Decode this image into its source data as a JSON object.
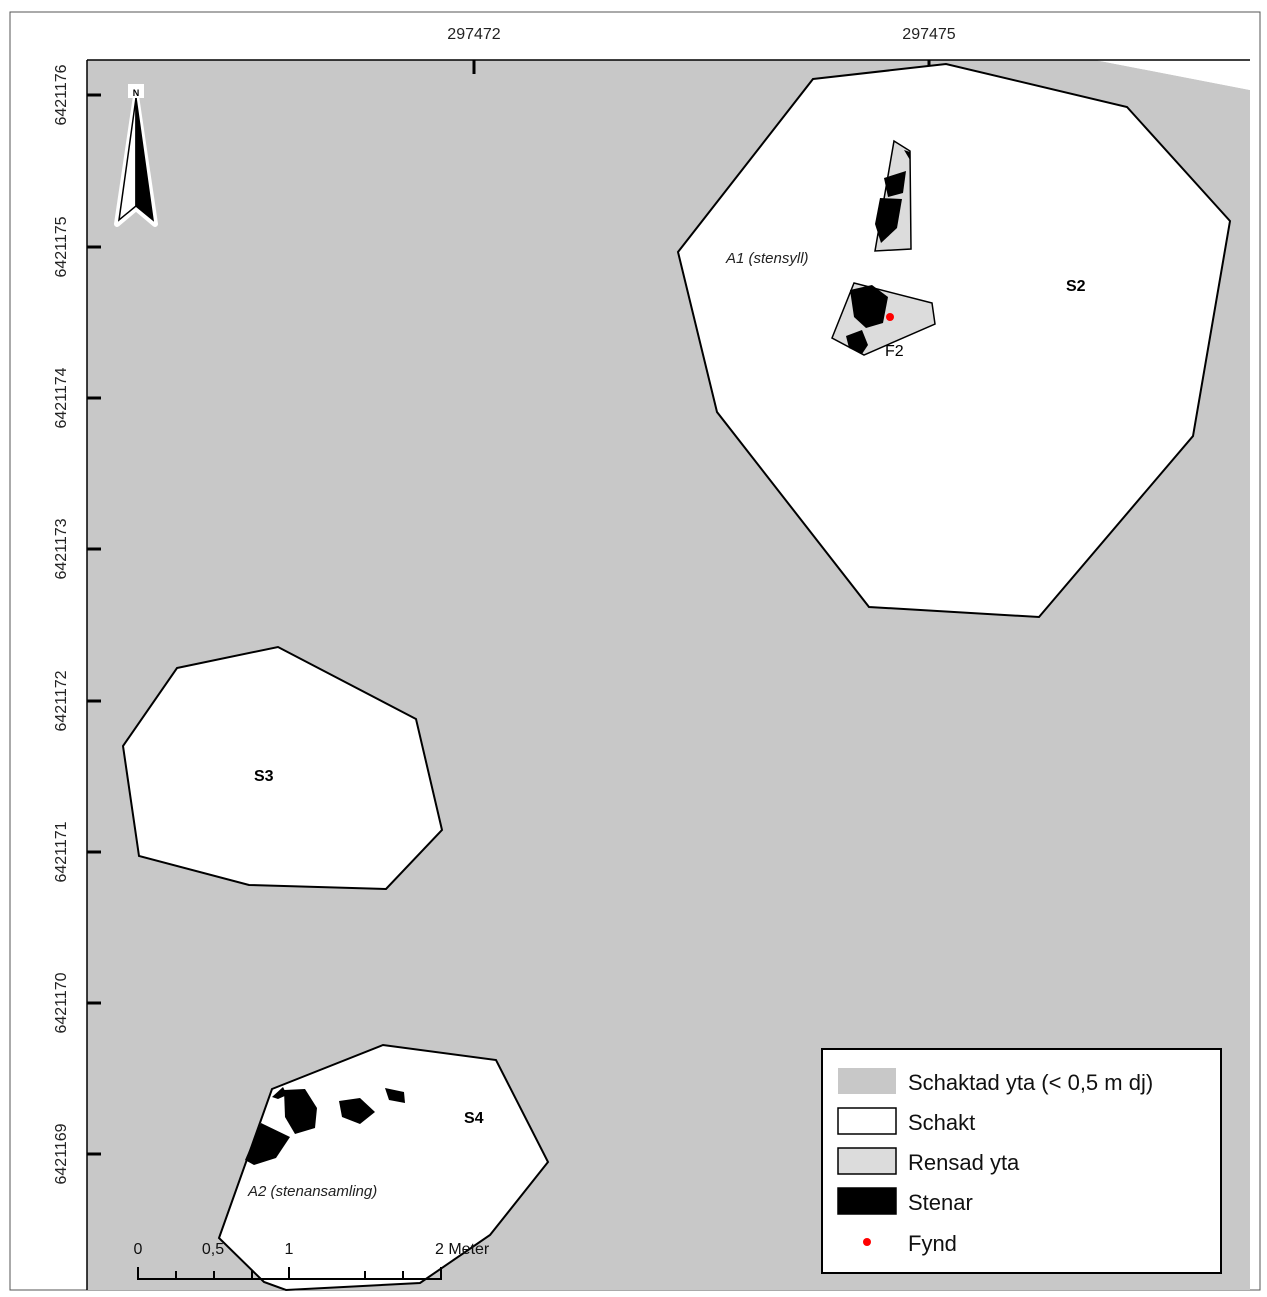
{
  "map": {
    "axis_top": {
      "labels": [
        "297472",
        "297475"
      ]
    },
    "axis_left": {
      "labels": [
        "6421176",
        "6421175",
        "6421174",
        "6421173",
        "6421172",
        "6421171",
        "6421170",
        "6421169"
      ]
    },
    "north_arrow": {
      "letter": "N"
    },
    "features": {
      "s2": "S2",
      "s3": "S3",
      "s4": "S4",
      "a1": "A1 (stensyll)",
      "a2": "A2 (stenansamling)",
      "f2": "F2"
    },
    "colors": {
      "excavated_area": "#c8c8c8",
      "trench": "#ffffff",
      "cleaned_area": "#dcdcdc",
      "stones": "#000000",
      "find": "#ff0000"
    }
  },
  "legend": {
    "items": [
      {
        "label": "Schaktad yta (< 0,5 m dj)",
        "symbol": "excavated-area-swatch"
      },
      {
        "label": "Schakt",
        "symbol": "trench-swatch"
      },
      {
        "label": "Rensad yta",
        "symbol": "cleaned-area-swatch"
      },
      {
        "label": "Stenar",
        "symbol": "stones-swatch"
      },
      {
        "label": "Fynd",
        "symbol": "find-point-icon"
      }
    ]
  },
  "scale_bar": {
    "labels": [
      "0",
      "0,5",
      "1",
      "2 Meter"
    ]
  }
}
